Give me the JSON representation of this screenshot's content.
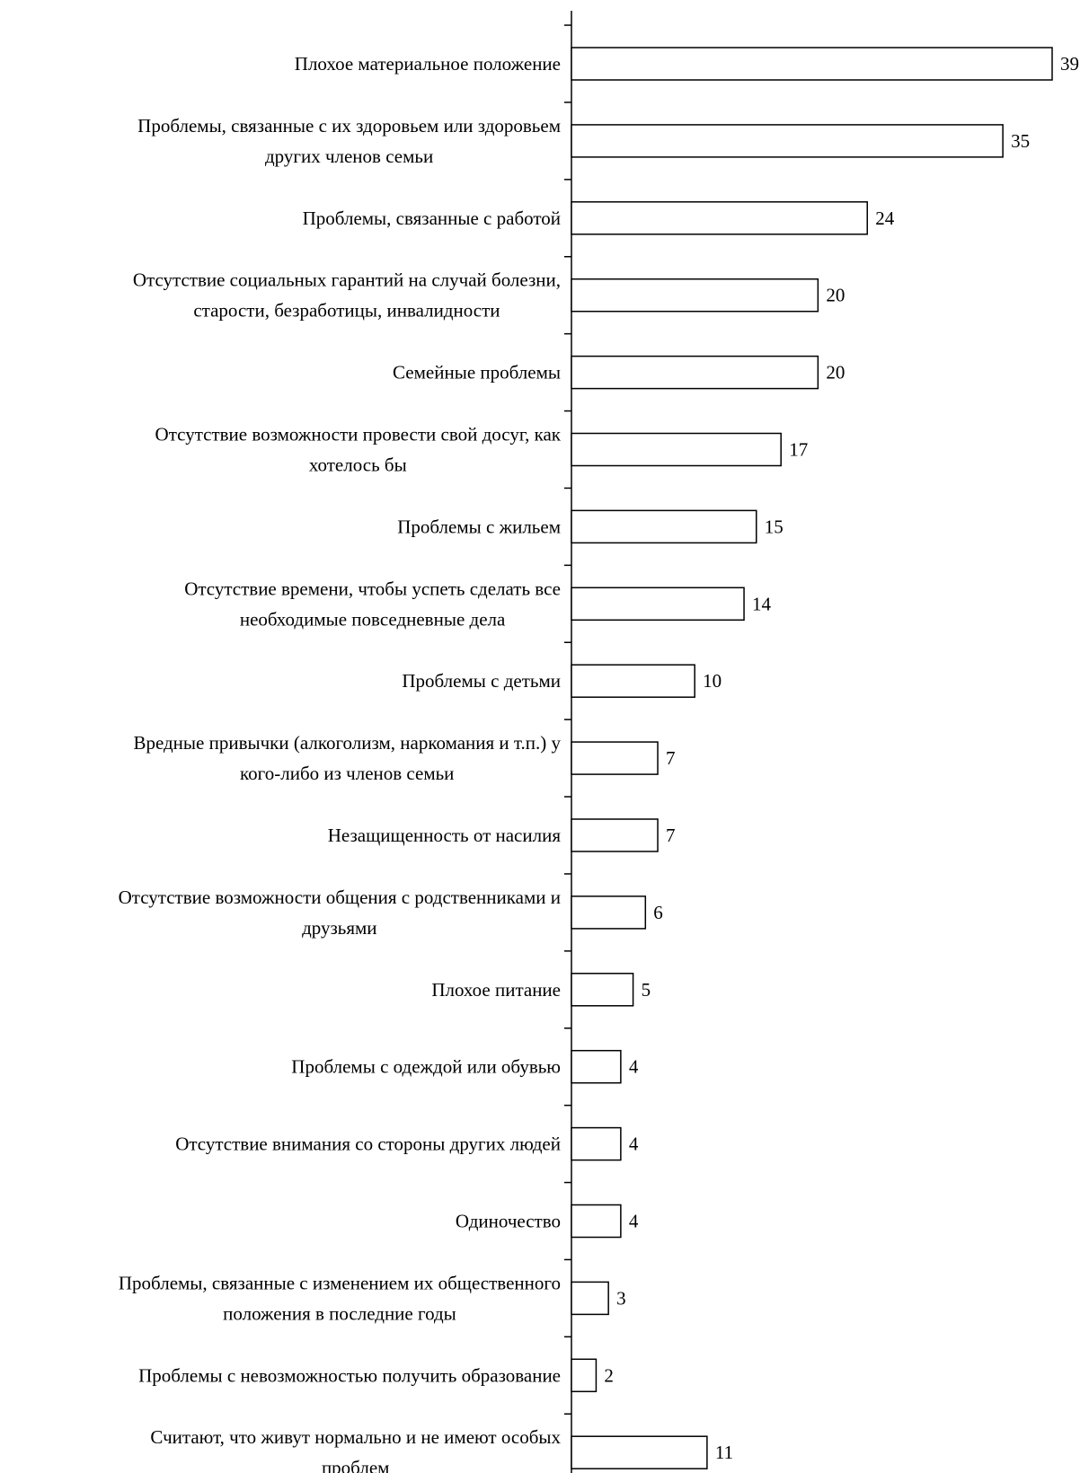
{
  "chart_data": {
    "type": "bar",
    "orientation": "horizontal",
    "categories": [
      "Плохое материальное положение",
      "Проблемы, связанные с их здоровьем или здоровьем\nдругих членов семьи",
      "Проблемы, связанные с работой",
      "Отсутствие социальных гарантий на случай болезни,\nстарости, безработицы, инвалидности",
      "Семейные проблемы",
      "Отсутствие возможности провести свой досуг, как\nхотелось бы",
      "Проблемы с жильем",
      "Отсутствие времени, чтобы успеть сделать все\nнеобходимые повседневные дела",
      "Проблемы с детьми",
      "Вредные привычки (алкоголизм, наркомания и т.п.) у\nкого-либо из членов семьи",
      "Незащищенность от насилия",
      "Отсутствие возможности общения с родственниками и\nдрузьями",
      "Плохое питание",
      "Проблемы с одеждой или обувью",
      "Отсутствие внимания со стороны других людей",
      "Одиночество",
      "Проблемы, связанные с изменением их общественного\nположения в последние годы",
      "Проблемы с невозможностью получить образование",
      "Считают, что живут нормально и не имеют особых\nпроблем"
    ],
    "values": [
      39,
      35,
      24,
      20,
      20,
      17,
      15,
      14,
      10,
      7,
      7,
      6,
      5,
      4,
      4,
      4,
      3,
      2,
      11
    ],
    "value_labels": [
      "39",
      "35",
      "24",
      "20",
      "20",
      "17",
      "15",
      "14",
      "10",
      "7",
      "7",
      "6",
      "5",
      "4",
      "4",
      "4",
      "3",
      "2",
      "11"
    ],
    "xlim": [
      0,
      39
    ],
    "grid": false,
    "legend": "none",
    "colors": {
      "bar_fill": "#ffffff",
      "bar_stroke": "#000000",
      "text": "#000000"
    }
  }
}
